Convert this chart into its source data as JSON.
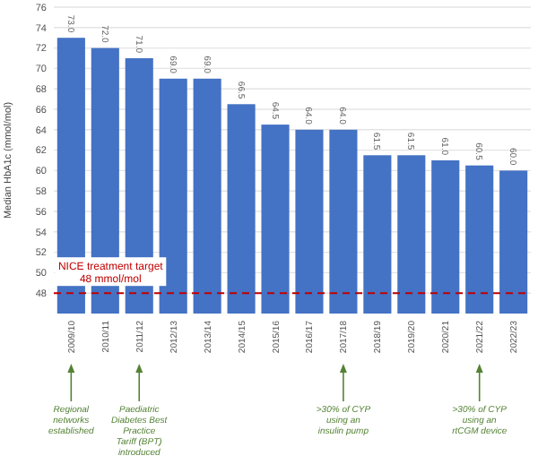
{
  "chart_data": {
    "type": "bar",
    "ylabel": "Median HbA1c (mmol/mol)",
    "categories": [
      "2009/10",
      "2010/11",
      "2011/12",
      "2012/13",
      "2013/14",
      "2014/15",
      "2015/16",
      "2016/17",
      "2017/18",
      "2018/19",
      "2019/20",
      "2020/21",
      "2021/22",
      "2022/23"
    ],
    "values": [
      73,
      72,
      71,
      69,
      69,
      66.5,
      64.5,
      64,
      64,
      61.5,
      61.5,
      61,
      60.5,
      60
    ],
    "value_labels": [
      "73.0",
      "72.0",
      "71.0",
      "69.0",
      "69.0",
      "66.5",
      "64.5",
      "64.0",
      "64.0",
      "61.5",
      "61.5",
      "61.0",
      "60.5",
      "60.0"
    ],
    "color": "#4472c4",
    "ylim": [
      46,
      76
    ],
    "yticks": [
      48,
      50,
      52,
      54,
      56,
      58,
      60,
      62,
      64,
      66,
      68,
      70,
      72,
      74,
      76
    ],
    "grid": "y",
    "ref_lines": [
      {
        "axis": "y",
        "value": 48,
        "label": "NICE treatment target\n48 mmol/mol",
        "color": "#c00000",
        "line_style": "dashed"
      }
    ],
    "annotations": [
      {
        "text": "Regional networks established",
        "x": "2009/10"
      },
      {
        "text": "Paediatric Diabetes Best Practice Tariff (BPT) introduced",
        "x": "2011/12"
      },
      {
        "text": ">30% of CYP using an insulin pump",
        "x": "2017/18"
      },
      {
        "text": ">30% of CYP using an rtCGM device",
        "x": "2021/22"
      }
    ]
  }
}
